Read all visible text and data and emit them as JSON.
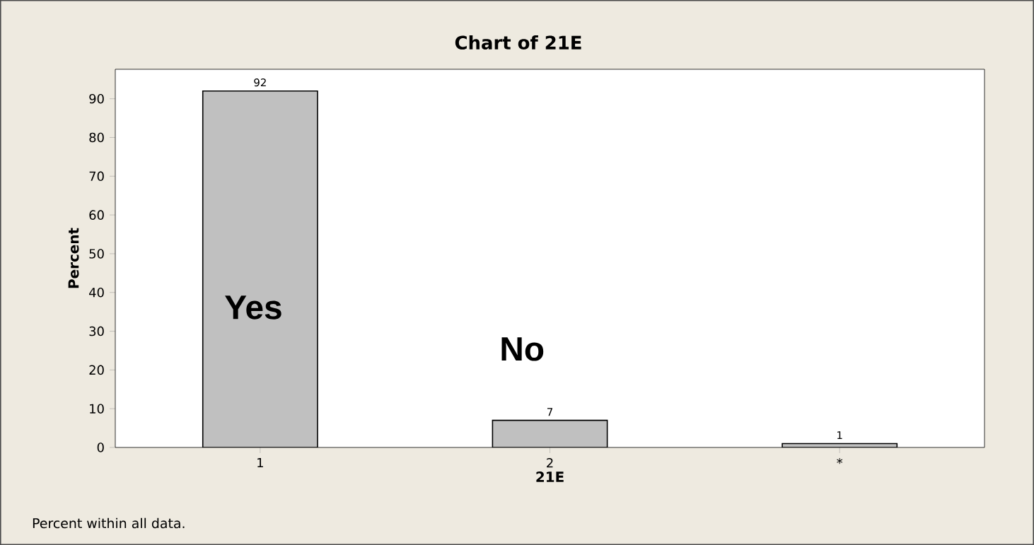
{
  "chart_data": {
    "type": "bar",
    "title": "Chart of 21E",
    "xlabel": "21E",
    "ylabel": "Percent",
    "categories": [
      "1",
      "2",
      "*"
    ],
    "values": [
      92,
      7,
      1
    ],
    "color": "#c0c0c0",
    "ylim": [
      0,
      97.6
    ],
    "yticks": [
      0,
      10,
      20,
      30,
      40,
      50,
      60,
      70,
      80,
      90
    ],
    "data_labels": true,
    "annotations": [
      "Yes",
      "No",
      "Percent within all data."
    ]
  }
}
